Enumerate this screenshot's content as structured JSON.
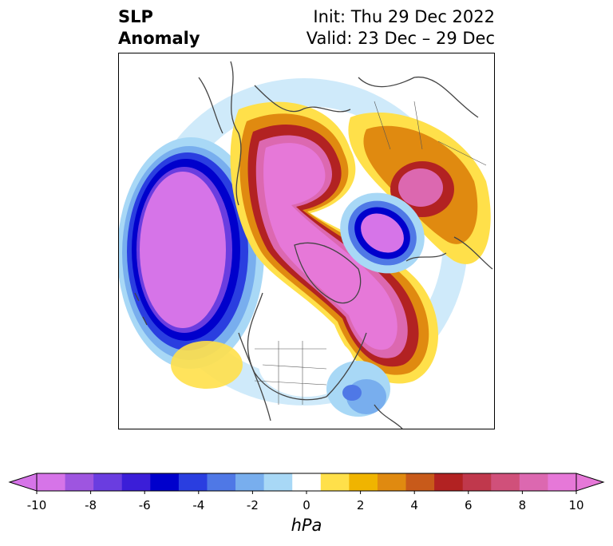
{
  "header": {
    "title_line1": "SLP",
    "title_line2": "Anomaly",
    "init_text": "Init: Thu 29 Dec 2022",
    "valid_text": "Valid: 23 Dec – 29 Dec"
  },
  "colorbar": {
    "tick_labels": [
      "-10",
      "-8",
      "-6",
      "-4",
      "-2",
      "0",
      "2",
      "4",
      "6",
      "8",
      "10"
    ],
    "units": "hPa",
    "colors": [
      "#d674e8",
      "#9e55e0",
      "#6a3de0",
      "#3b1ed8",
      "#0000cc",
      "#2a3ee0",
      "#4f78e6",
      "#78aeee",
      "#a8d8f6",
      "#ffffff",
      "#ffe04a",
      "#f0b400",
      "#e08a10",
      "#c85a1a",
      "#b22222",
      "#c0384c",
      "#d0507a",
      "#dc68b0",
      "#e678d8"
    ]
  },
  "map": {
    "projection": "north-polar-stereographic",
    "coastline_color": "#444444",
    "palette": {
      "strong_neg": "#d674e8",
      "neg_blue_dark": "#0000cc",
      "neg_blue": "#4f78e6",
      "neg_light": "#a8d8f6",
      "pos_yellow": "#ffe04a",
      "pos_orange": "#e08a10",
      "pos_red": "#b22222",
      "strong_pos": "#e678d8"
    }
  }
}
